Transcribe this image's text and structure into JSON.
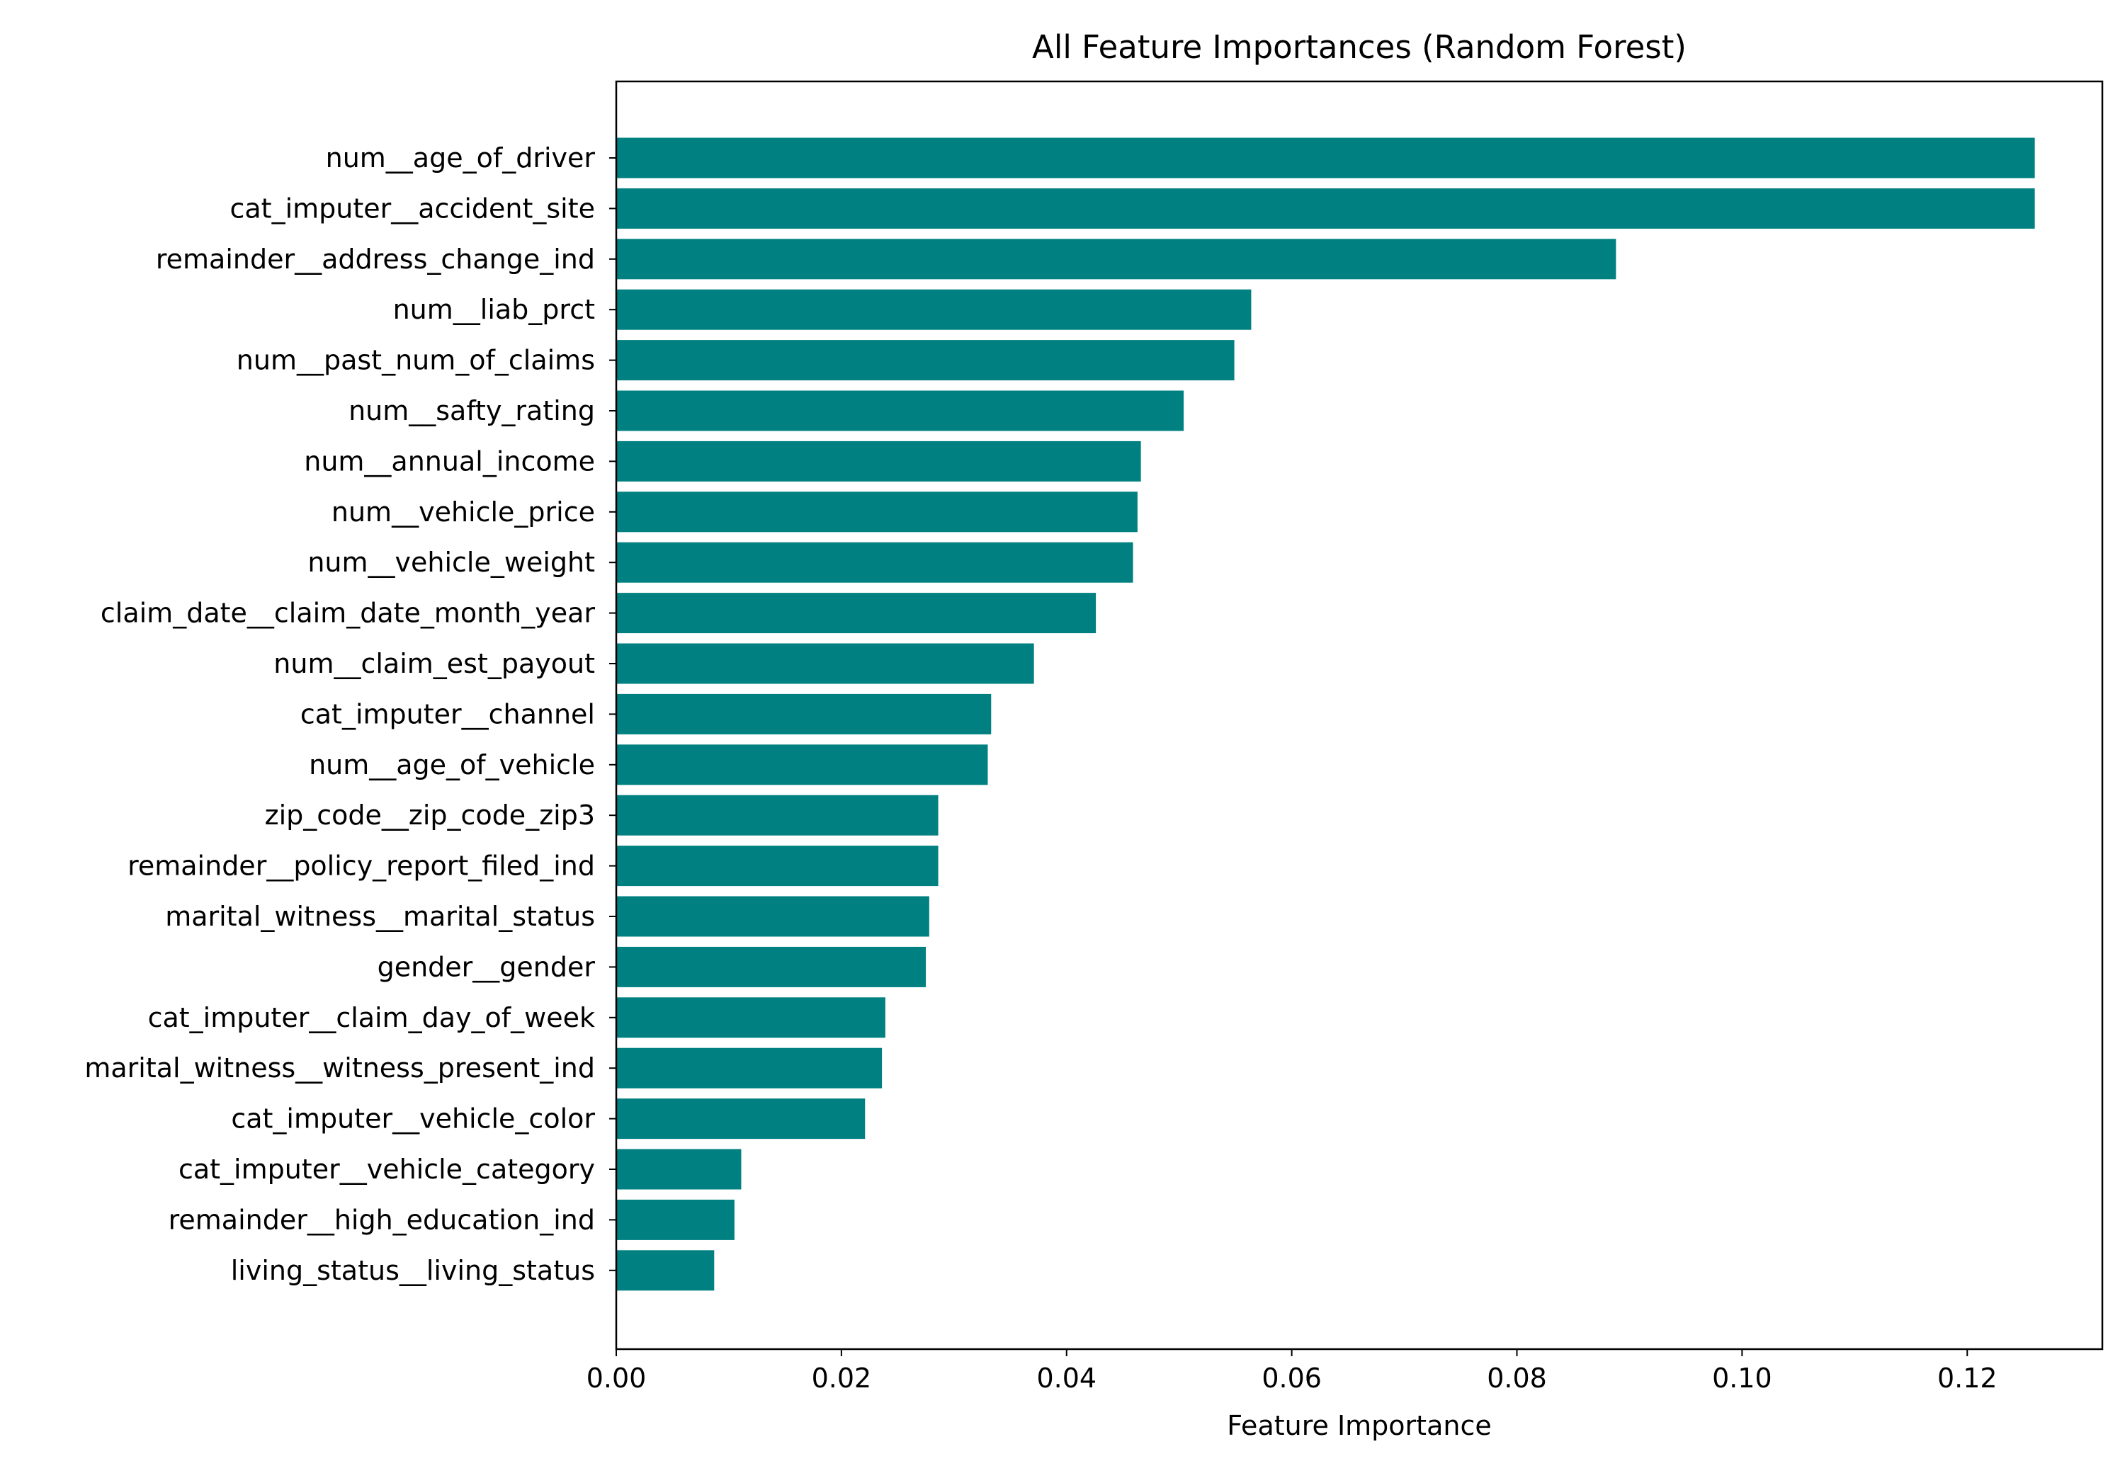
{
  "chart_data": {
    "type": "bar",
    "orientation": "horizontal",
    "title": "All Feature Importances (Random Forest)",
    "xlabel": "Feature Importance",
    "ylabel": "",
    "xlim": [
      0,
      0.132
    ],
    "xticks": [
      0.0,
      0.02,
      0.04,
      0.06,
      0.08,
      0.1,
      0.12
    ],
    "xtick_labels": [
      "0.00",
      "0.02",
      "0.04",
      "0.06",
      "0.08",
      "0.10",
      "0.12"
    ],
    "grid": false,
    "legend": "none",
    "bar_color": "#008080",
    "categories": [
      "num__age_of_driver",
      "cat_imputer__accident_site",
      "remainder__address_change_ind",
      "num__liab_prct",
      "num__past_num_of_claims",
      "num__safty_rating",
      "num__annual_income",
      "num__vehicle_price",
      "num__vehicle_weight",
      "claim_date__claim_date_month_year",
      "num__claim_est_payout",
      "cat_imputer__channel",
      "num__age_of_vehicle",
      "zip_code__zip_code_zip3",
      "remainder__policy_report_filed_ind",
      "marital_witness__marital_status",
      "gender__gender",
      "cat_imputer__claim_day_of_week",
      "marital_witness__witness_present_ind",
      "cat_imputer__vehicle_color",
      "cat_imputer__vehicle_category",
      "remainder__high_education_ind",
      "living_status__living_status"
    ],
    "values": [
      0.126,
      0.126,
      0.0888,
      0.0564,
      0.0549,
      0.0504,
      0.0466,
      0.0463,
      0.0459,
      0.0426,
      0.0371,
      0.0333,
      0.033,
      0.0286,
      0.0286,
      0.0278,
      0.0275,
      0.0239,
      0.0236,
      0.0221,
      0.0111,
      0.0105,
      0.0087
    ]
  }
}
